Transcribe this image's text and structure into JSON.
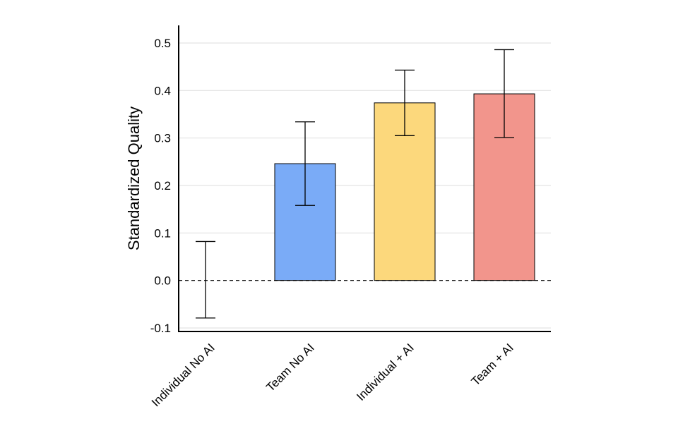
{
  "chart_data": {
    "type": "bar",
    "title": "",
    "xlabel": "",
    "ylabel": "Standardized Quality",
    "categories": [
      "Individual No AI",
      "Team No AI",
      "Individual + AI",
      "Team + AI"
    ],
    "values": [
      0.0,
      0.246,
      0.374,
      0.393
    ],
    "error_low": [
      -0.079,
      0.158,
      0.305,
      0.301
    ],
    "error_high": [
      0.082,
      0.334,
      0.443,
      0.486
    ],
    "bar_colors": [
      "#ffffff",
      "#7aabf7",
      "#fcd87c",
      "#f2958c"
    ],
    "ylim": [
      -0.1,
      0.5
    ],
    "yticks": [
      -0.1,
      0.0,
      0.1,
      0.2,
      0.3,
      0.4,
      0.5
    ],
    "ytick_labels": [
      "-0.1",
      "0.0",
      "0.1",
      "0.2",
      "0.3",
      "0.4",
      "0.5"
    ],
    "grid": true,
    "reference_line": 0.0
  }
}
